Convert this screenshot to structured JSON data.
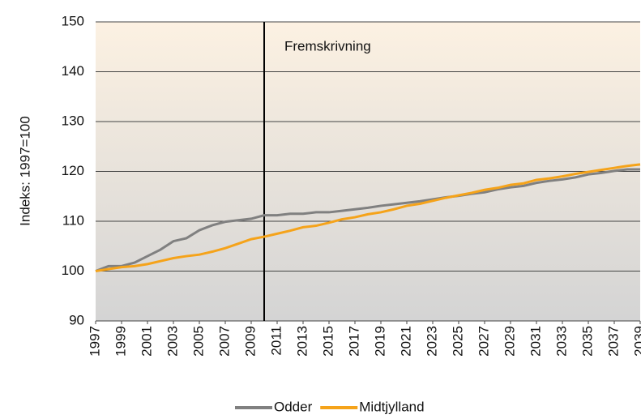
{
  "chart_data": {
    "type": "line",
    "ylabel": "Indeks: 1997=100",
    "x": [
      1997,
      1998,
      1999,
      2000,
      2001,
      2002,
      2003,
      2004,
      2005,
      2006,
      2007,
      2008,
      2009,
      2010,
      2011,
      2012,
      2013,
      2014,
      2015,
      2016,
      2017,
      2018,
      2019,
      2020,
      2021,
      2022,
      2023,
      2024,
      2025,
      2026,
      2027,
      2028,
      2029,
      2030,
      2031,
      2032,
      2033,
      2034,
      2035,
      2036,
      2037,
      2038,
      2039
    ],
    "series": [
      {
        "name": "Odder",
        "color": "#808080",
        "values": [
          100,
          101,
          101,
          101.7,
          103,
          104.3,
          106,
          106.6,
          108.2,
          109.2,
          109.9,
          110.2,
          110.5,
          111.2,
          111.2,
          111.5,
          111.5,
          111.8,
          111.8,
          112.1,
          112.4,
          112.7,
          113.1,
          113.4,
          113.7,
          114,
          114.4,
          114.8,
          115.1,
          115.5,
          115.8,
          116.4,
          116.8,
          117.1,
          117.7,
          118.1,
          118.4,
          118.8,
          119.4,
          119.7,
          120.1,
          120.4,
          120.4
        ]
      },
      {
        "name": "Midtjylland",
        "color": "#f5a31a",
        "values": [
          100,
          100.4,
          100.8,
          101,
          101.4,
          102,
          102.6,
          103,
          103.3,
          103.9,
          104.6,
          105.5,
          106.4,
          106.9,
          107.5,
          108.1,
          108.8,
          109.1,
          109.7,
          110.4,
          110.8,
          111.4,
          111.8,
          112.4,
          113.1,
          113.5,
          114.1,
          114.7,
          115.2,
          115.7,
          116.3,
          116.7,
          117.3,
          117.6,
          118.3,
          118.6,
          119,
          119.5,
          119.9,
          120.3,
          120.7,
          121.1,
          121.4
        ]
      }
    ],
    "xlim": [
      1997,
      2039
    ],
    "xticks": [
      1997,
      1999,
      2001,
      2003,
      2005,
      2007,
      2009,
      2011,
      2013,
      2015,
      2017,
      2019,
      2021,
      2023,
      2025,
      2027,
      2029,
      2031,
      2033,
      2035,
      2037,
      2039
    ],
    "ylim": [
      90,
      150
    ],
    "yticks": [
      90,
      100,
      110,
      120,
      130,
      140,
      150
    ],
    "grid": true,
    "annotation": {
      "text": "Fremskrivning",
      "x": 2010
    },
    "legend": "bottom"
  }
}
